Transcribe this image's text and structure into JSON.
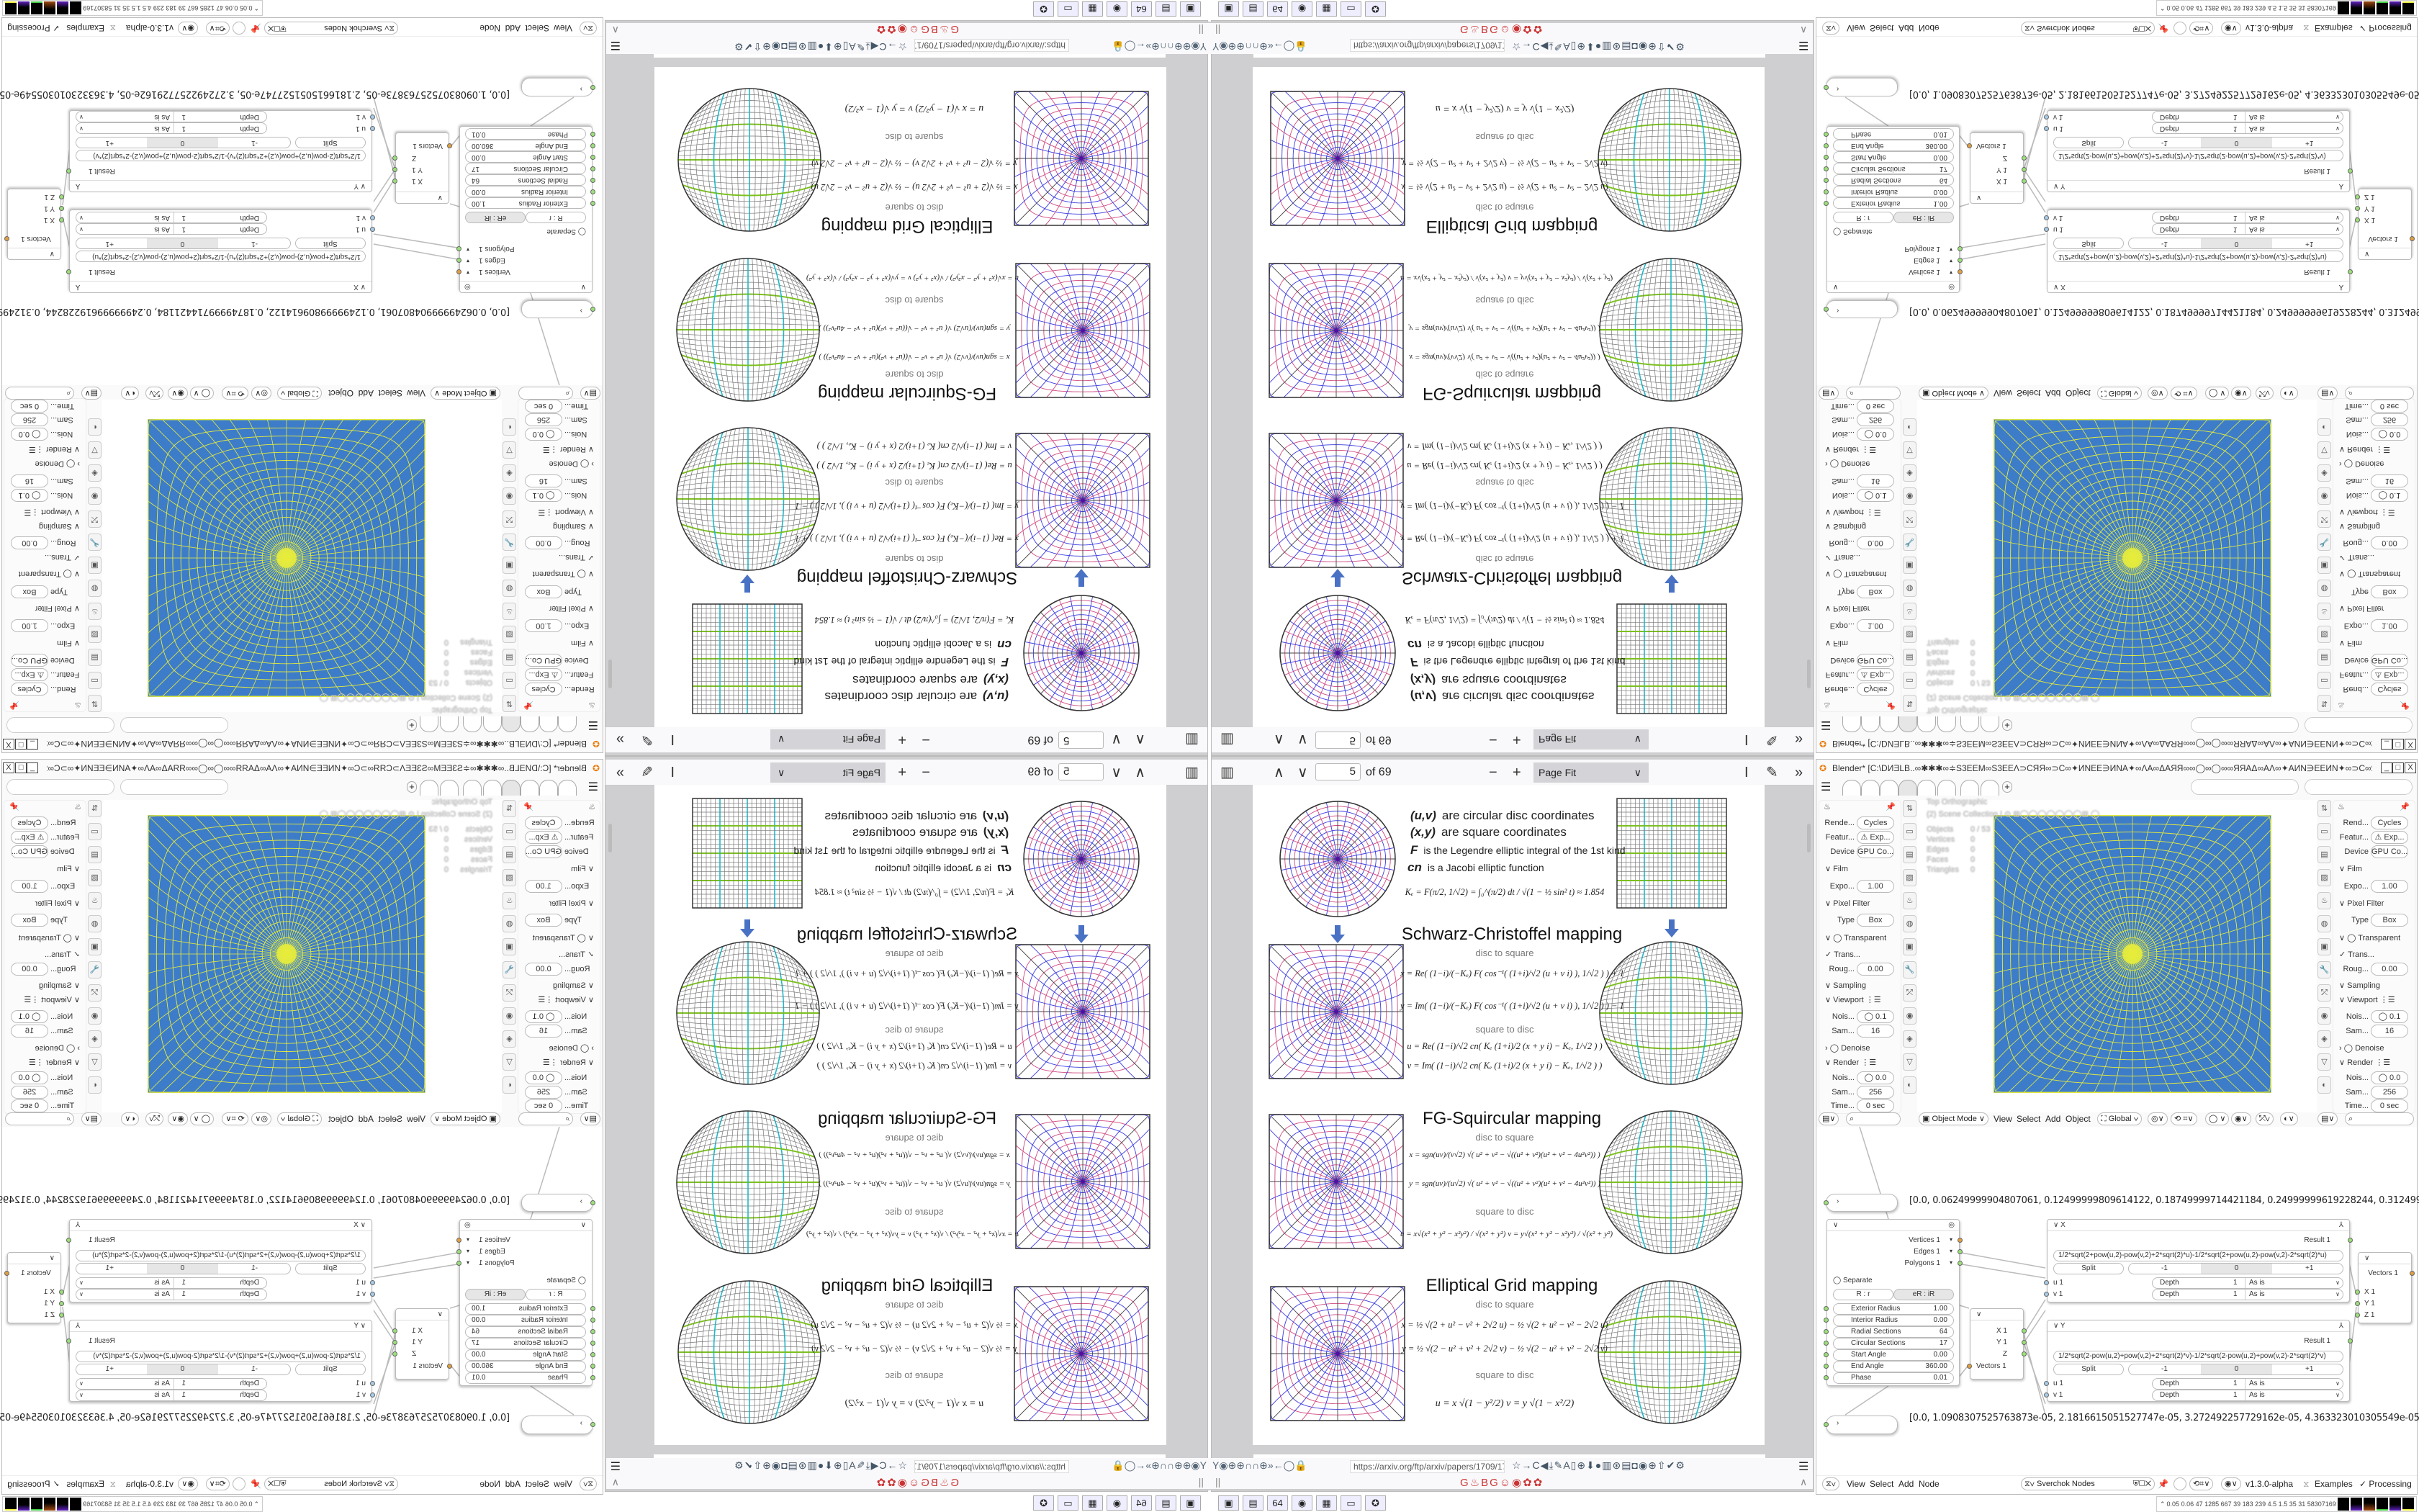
{
  "colors": {
    "viewport_bg": "#3d7cc9",
    "viewport_wire": "#e6ec3c",
    "disc_blue": "#3a3ae0",
    "disc_pink": "#d04a80",
    "grid_green": "#7cc020",
    "grid_cyan": "#20b8c8",
    "arrow": "#4a72c4"
  },
  "pdf": {
    "toolbar": {
      "sidebar_icon": "sidebar-toggle-icon",
      "prev": "∧",
      "next": "∨",
      "page": "5",
      "page_of": "of 69",
      "zoom_out": "−",
      "zoom_in": "+",
      "zoom": "Page Fit",
      "zoom_chevron": "∨",
      "text_tool": "I",
      "draw_tool": "✎",
      "more": "»"
    },
    "page": {
      "intro": [
        {
          "sym": "(u,v)",
          "text": "are circular disc coordinates"
        },
        {
          "sym": "(x,y)",
          "text": "are square coordinates"
        },
        {
          "sym": "F",
          "text": "is the Legendre elliptic integral of the 1st kind"
        },
        {
          "sym": "cn",
          "text": "is a Jacobi elliptic function"
        }
      ],
      "ke_formula": "Kₑ = F(π/2, 1/√2) = ∫₀^(π/2) dt / √(1 − ½ sin² t) ≈ 1.854",
      "sections": [
        {
          "title": "Schwarz-Christoffel mapping",
          "d2s_label": "disc to square",
          "d2s": [
            "x = Re( (1−i)/(−Kₑ) F( cos⁻¹( (1+i)/√2 (u + v i) ), 1/√2 ) ) + 1",
            "y = Im( (1−i)/(−Kₑ) F( cos⁻¹( (1+i)/√2 (u + v i) ), 1/√2 ) ) − 1"
          ],
          "s2d_label": "square to disc",
          "s2d": [
            "u = Re( (1−i)/√2 cn( Kₑ (1+i)/2 (x + y i) − Kₑ, 1/√2 ) )",
            "v = Im( (1−i)/√2 cn( Kₑ (1+i)/2 (x + y i) − Kₑ, 1/√2 ) )"
          ]
        },
        {
          "title": "FG-Squircular mapping",
          "d2s_label": "disc to square",
          "d2s": [
            "x = sgn(uv)/(v√2) √( u² + v² − √((u² + v²)(u² + v² − 4u²v²)) )",
            "y = sgn(uv)/(u√2) √( u² + v² − √((u² + v²)(u² + v² − 4u²v²)) )"
          ],
          "s2d_label": "square to disc",
          "s2d": [
            "u = x√(x² + y² − x²y²) / √(x² + y²)     v = y√(x² + y² − x²y²) / √(x² + y²)"
          ]
        },
        {
          "title": "Elliptical Grid mapping",
          "d2s_label": "disc to square",
          "d2s": [
            "x = ½ √(2 + u² − v² + 2√2 u) − ½ √(2 + u² − v² − 2√2 u)",
            "y = ½ √(2 − u² + v² + 2√2 v) − ½ √(2 − u² + v² − 2√2 v)"
          ],
          "s2d_label": "square to disc",
          "s2d": [
            "u = x √(1 − y²/2)          v = y √(1 − x²/2)"
          ]
        }
      ]
    },
    "browser": {
      "url": "https://arxiv.org/ftp/arxiv/papers/1709/1709",
      "nav_icons": "Y◉⊕⊕∩∩⊕»←◯🔒",
      "toolbar_icons": "☆→C◀⤓✎A▯⊕⬇●▥⊛▤◘◉⊕⇧✔⚙",
      "menu": "☰",
      "bookmarks": "G♨BG☺◉✿✿",
      "bookmarks_left": "||",
      "bookmarks_right": "∧"
    }
  },
  "taskbar": {
    "icons": [
      {
        "name": "remote-desktop-icon",
        "glyph": "▣"
      },
      {
        "name": "green-app-icon",
        "glyph": "▤"
      },
      {
        "name": "floppy-64-icon",
        "glyph": "64"
      },
      {
        "name": "firefox-icon",
        "glyph": "◉"
      },
      {
        "name": "notepad-icon",
        "glyph": "▦"
      },
      {
        "name": "window-app-icon",
        "glyph": "▭"
      },
      {
        "name": "blender-icon",
        "glyph": "✪"
      }
    ]
  },
  "blender": {
    "title": "Blender* [C:\\DИƎLB..∞✱✱✱∞≑S3EEM∞S3EEΛ⊃CЯЯ∞⊃C∞✦ИNEE∋ИNA✦∞ΛA∞ΔAЯЯ∞∞◯∞◯∞∞ЯЯAΔ∞AΛ∞✦AИN∋EEИN✦∞⊃C∞ЯЯ⊃CΛEES∞MEES≑∞✱✱✱∞...",
    "win_buttons": [
      "_",
      "□",
      "X"
    ],
    "new_tab": "+",
    "props_left": [
      {
        "l": "Rende...",
        "v": "Cycles"
      },
      {
        "l": "Featur...",
        "v": "⚠ Exp..."
      },
      {
        "l": "Device",
        "v": "GPU Co..."
      },
      {
        "h": "∨ Film"
      },
      {
        "l": "Expo...",
        "v": "1.00"
      },
      {
        "h": "  ∨ Pixel Filter"
      },
      {
        "l": "Type",
        "v": "Box"
      },
      {
        "h": "  ∨ ◯ Transparent"
      },
      {
        "h": "      ✓ Trans..."
      },
      {
        "l": "Roug...",
        "v": "0.00"
      },
      {
        "h": "∨ Sampling"
      },
      {
        "h": "  ∨ Viewport ⋮☰"
      },
      {
        "l": "Nois...",
        "v": "◯ 0.1"
      },
      {
        "l": "Sam...",
        "v": "16"
      },
      {
        "h": "  › ◯ Denoise"
      },
      {
        "h": "  ∨ Render ⋮☰"
      },
      {
        "l": "Nois...",
        "v": "◯ 0.0"
      },
      {
        "l": "Sam...",
        "v": "256"
      },
      {
        "l": "Time...",
        "v": "0 sec"
      }
    ],
    "props_right_first": "Rend...",
    "tools": [
      "⇅",
      "▭",
      "▤",
      "▨",
      "♨",
      "◍",
      "▣",
      "🔧",
      "⤱",
      "◉",
      "◈",
      "▽",
      "◐"
    ],
    "overlay": {
      "view": "Top Orthographic",
      "collection": "(2) Scene Collection | ⊙ ⊞◯◯◯◯◯◯◯⊞ ◯",
      "stats": [
        {
          "k": "Objects",
          "v": "0 / 53"
        },
        {
          "k": "Vertices",
          "v": "0"
        },
        {
          "k": "Edges",
          "v": "0"
        },
        {
          "k": "Faces",
          "v": "0"
        },
        {
          "k": "Triangles",
          "v": "0"
        }
      ]
    },
    "viewport_header": {
      "mode": "Object Mode",
      "menus": [
        "View",
        "Select",
        "Add",
        "Object"
      ],
      "orientation": "Global"
    },
    "mesh": {
      "radial_sections": 64,
      "circular_sections": 17
    },
    "nodes": {
      "text_top": "[0.0, 0.06249999904807061, 0.12499999809614122, 0.18749999714421184, 0.24999999619228244, 0.31249999524035305, 0.374",
      "text_bottom": "[0.0, 1.0908307525763873e-05, 2.1816615051527747e-05, 3.272492257729162e-05, 4.363323010305549e-05, 5.454153762881936",
      "circle": {
        "outputs": [
          "Vertices 1",
          "Edges 1",
          "Polygons 1"
        ],
        "separate": "Separate",
        "mode_a": "R : r",
        "mode_b": "eR : iR",
        "params": [
          {
            "k": "Exterior Radius",
            "v": "1.00"
          },
          {
            "k": "Interior Radius",
            "v": "0.00"
          },
          {
            "k": "Radial Sections",
            "v": "64"
          },
          {
            "k": "Circular Sections",
            "v": "17"
          },
          {
            "k": "Start Angle",
            "v": "0.00"
          },
          {
            "k": "End Angle",
            "v": "360.00"
          },
          {
            "k": "Phase",
            "v": "0.01"
          }
        ]
      },
      "split": {
        "outputs": [
          "X 1",
          "Y 1",
          "Z"
        ],
        "input": "Vectors 1"
      },
      "formula_x": {
        "title": "X",
        "result": "Result 1",
        "formula": "1/2*sqrt(2+pow(u,2)-pow(v,2)+2*sqrt(2)*u)-1/2*sqrt(2+pow(u,2)-pow(v,2)-2*sqrt(2)*u)",
        "split": "Split",
        "m1": "-1",
        "zero": "0",
        "p1": "+1",
        "inputs": [
          {
            "n": "u 1",
            "d": "Depth",
            "dv": "1",
            "a": "As is"
          },
          {
            "n": "v 1",
            "d": "Depth",
            "dv": "1",
            "a": "As is"
          }
        ]
      },
      "formula_y": {
        "title": "Y",
        "result": "Result 1",
        "formula": "1/2*sqrt(2-pow(u,2)+pow(v,2)+2*sqrt(2)*v)-1/2*sqrt(2-pow(u,2)+pow(v,2)-2*sqrt(2)*v)",
        "split": "Split",
        "m1": "-1",
        "zero": "0",
        "p1": "+1",
        "inputs": [
          {
            "n": "u 1",
            "d": "Depth",
            "dv": "1",
            "a": "As is"
          },
          {
            "n": "v 1",
            "d": "Depth",
            "dv": "1",
            "a": "As is"
          }
        ]
      },
      "vectors": {
        "output": "Vectors 1",
        "inputs": [
          "X 1",
          "Y 1",
          "Z 1"
        ]
      }
    },
    "node_header": {
      "menus": [
        "View",
        "Select",
        "Add",
        "Node"
      ],
      "tree": "Sverchok Nodes",
      "version": "v1.3.0-alpha",
      "examples": "Examples",
      "processing": "✓ Processing"
    },
    "status": "0.05 0.06  47  1285 667  39  183  239  4.5  1.5  35  31  58307169"
  }
}
